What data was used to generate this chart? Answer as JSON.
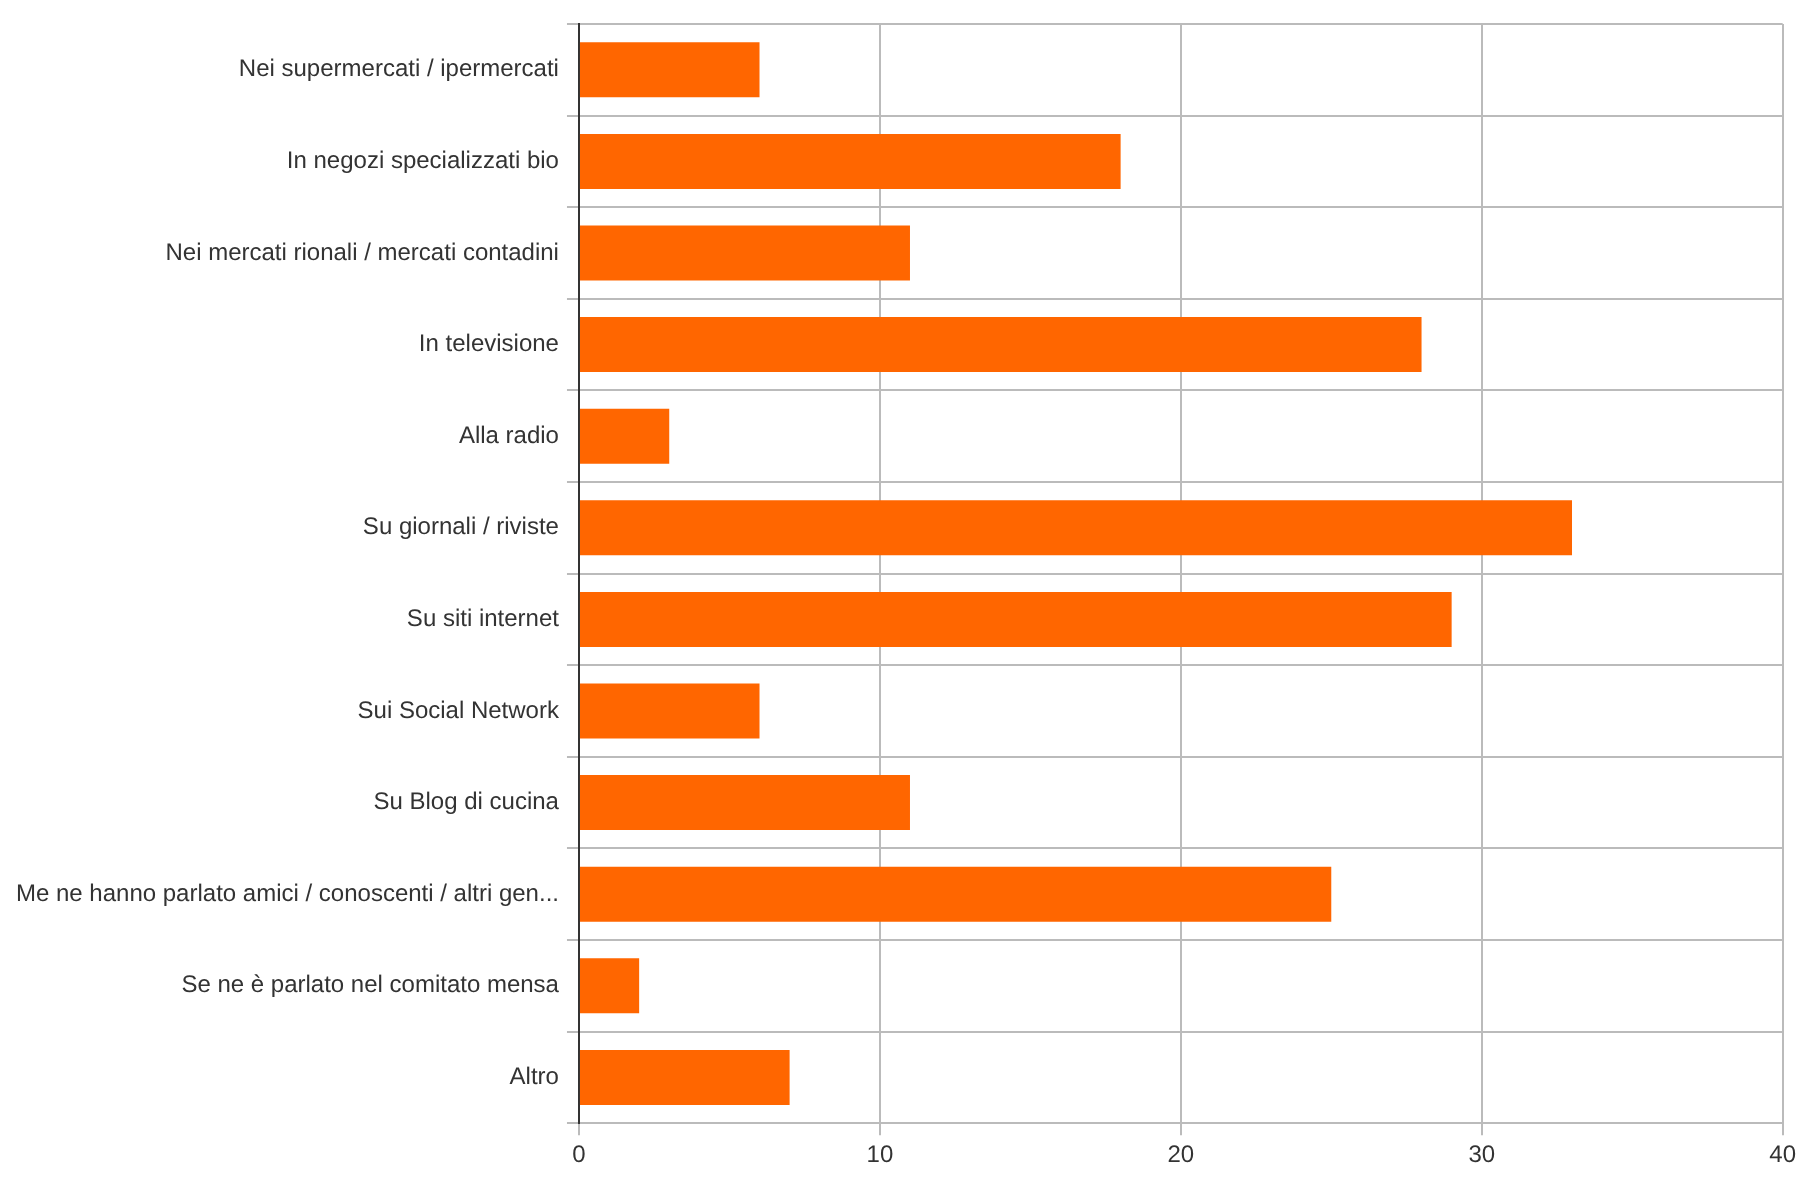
{
  "chart_data": {
    "type": "bar",
    "orientation": "horizontal",
    "categories": [
      "Nei supermercati / ipermercati",
      "In negozi specializzati bio",
      "Nei mercati rionali / mercati contadini",
      "In televisione",
      "Alla radio",
      "Su giornali / riviste",
      "Su siti internet",
      "Sui Social Network",
      "Su Blog di cucina",
      "Me ne hanno parlato amici / conoscenti / altri gen...",
      "Se ne è parlato nel comitato mensa",
      "Altro"
    ],
    "values": [
      6,
      18,
      11,
      28,
      3,
      33,
      29,
      6,
      11,
      25,
      2,
      7
    ],
    "color": "#ff6600",
    "xlim": [
      0,
      40
    ],
    "xticks": [
      0,
      10,
      20,
      30,
      40
    ],
    "grid": true,
    "legend": false
  }
}
